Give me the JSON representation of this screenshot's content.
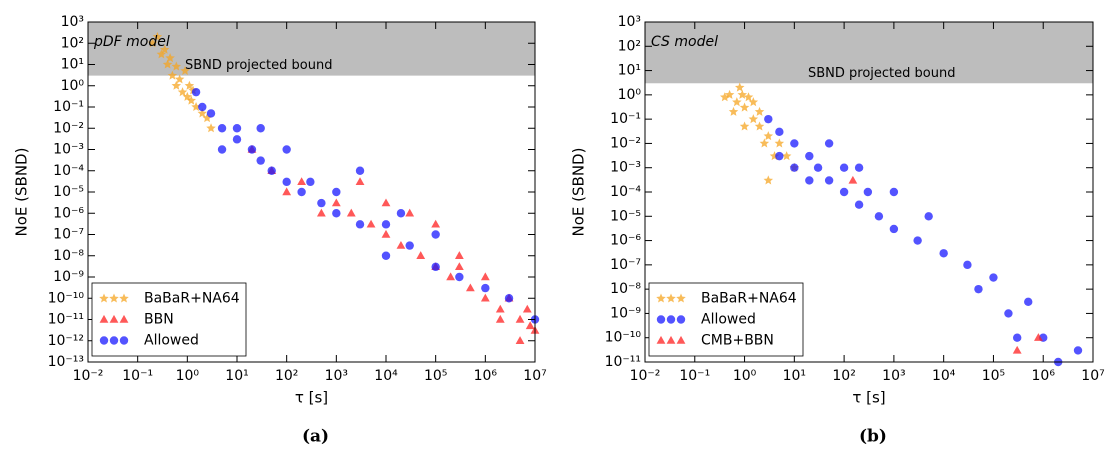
{
  "chart_data": [
    {
      "type": "scatter",
      "title": "pDF model",
      "caption": "(a)",
      "xlabel": "τ [s]",
      "ylabel": "NoE (SBND)",
      "xlog": true,
      "ylog": true,
      "legend": "lower left",
      "band": {
        "label": "SBND projected bound",
        "ylim": [
          3,
          1000
        ],
        "color": "#bdbdbd"
      },
      "xlim": [
        0.01,
        10000000
      ],
      "ylim": [
        1e-13,
        1000
      ],
      "xticks": [
        {
          "value": 0.01,
          "label": "10⁻²"
        },
        {
          "value": 0.1,
          "label": "10⁻¹"
        },
        {
          "value": 1,
          "label": "10⁰"
        },
        {
          "value": 10,
          "label": "10¹"
        },
        {
          "value": 100,
          "label": "10²"
        },
        {
          "value": 1000,
          "label": "10³"
        },
        {
          "value": 10000,
          "label": "10⁴"
        },
        {
          "value": 100000,
          "label": "10⁵"
        },
        {
          "value": 1000000,
          "label": "10⁶"
        },
        {
          "value": 10000000,
          "label": "10⁷"
        }
      ],
      "yticks": [
        {
          "value": 1e-13,
          "label": "10⁻¹³"
        },
        {
          "value": 1e-12,
          "label": "10⁻¹²"
        },
        {
          "value": 1e-11,
          "label": "10⁻¹¹"
        },
        {
          "value": 1e-10,
          "label": "10⁻¹⁰"
        },
        {
          "value": 1e-09,
          "label": "10⁻⁹"
        },
        {
          "value": 1e-08,
          "label": "10⁻⁸"
        },
        {
          "value": 1e-07,
          "label": "10⁻⁷"
        },
        {
          "value": 1e-06,
          "label": "10⁻⁶"
        },
        {
          "value": 1e-05,
          "label": "10⁻⁵"
        },
        {
          "value": 0.0001,
          "label": "10⁻⁴"
        },
        {
          "value": 0.001,
          "label": "10⁻³"
        },
        {
          "value": 0.01,
          "label": "10⁻²"
        },
        {
          "value": 0.1,
          "label": "10⁻¹"
        },
        {
          "value": 1,
          "label": "10⁰"
        },
        {
          "value": 10,
          "label": "10¹"
        },
        {
          "value": 100,
          "label": "10²"
        },
        {
          "value": 1000,
          "label": "10³"
        }
      ],
      "series": [
        {
          "name": "BaBaR+NA64",
          "color": "#f5a623",
          "marker": "star",
          "x": [
            0.2,
            0.3,
            0.4,
            0.5,
            0.6,
            0.8,
            1,
            0.7,
            1.2,
            1.5,
            0.9,
            1.1,
            2,
            0.35,
            0.45,
            1.3,
            0.6,
            2.5,
            3,
            0.25
          ],
          "values": [
            100,
            30,
            10,
            3,
            1,
            0.5,
            0.3,
            2,
            0.2,
            0.1,
            5,
            1,
            0.05,
            50,
            20,
            0.6,
            8,
            0.03,
            0.01,
            200
          ]
        },
        {
          "name": "BBN",
          "color": "#ff2020",
          "marker": "triangle",
          "x": [
            20,
            50,
            100,
            200,
            500,
            1000,
            2000,
            5000,
            10000,
            20000,
            50000,
            100000,
            200000,
            500000,
            1000000,
            2000000,
            5000000,
            10000000,
            30000,
            100000,
            300000,
            1000000,
            3000000,
            7000000,
            3000,
            10000,
            300000,
            2000000,
            5000000,
            8000000
          ],
          "values": [
            0.001,
            0.0001,
            1e-05,
            3e-05,
            1e-06,
            3e-06,
            1e-06,
            3e-07,
            1e-07,
            3e-08,
            1e-08,
            3e-09,
            1e-09,
            3e-10,
            1e-10,
            3e-11,
            1e-11,
            3e-12,
            1e-06,
            3e-07,
            1e-08,
            1e-09,
            1e-10,
            3e-11,
            3e-05,
            3e-06,
            3e-09,
            1e-11,
            1e-12,
            5e-12
          ]
        },
        {
          "name": "Allowed",
          "color": "#1a1aff",
          "marker": "circle",
          "x": [
            1.5,
            2,
            3,
            5,
            10,
            10,
            20,
            30,
            50,
            100,
            100,
            200,
            300,
            500,
            1000,
            1000,
            3000,
            10000,
            10000,
            30000,
            100000,
            100000,
            300000,
            1000000,
            3000000,
            10000000,
            5,
            30,
            3000,
            20000
          ],
          "values": [
            0.5,
            0.1,
            0.05,
            0.01,
            0.003,
            0.01,
            0.001,
            0.0003,
            0.0001,
            3e-05,
            0.001,
            1e-05,
            3e-05,
            3e-06,
            1e-06,
            1e-05,
            3e-07,
            3e-07,
            1e-08,
            3e-08,
            3e-09,
            1e-07,
            1e-09,
            3e-10,
            1e-10,
            1e-11,
            0.001,
            0.01,
            0.0001,
            1e-06
          ]
        }
      ]
    },
    {
      "type": "scatter",
      "title": "CS model",
      "caption": "(b)",
      "xlabel": "τ [s]",
      "ylabel": "NoE (SBND)",
      "xlog": true,
      "ylog": true,
      "legend": "lower left",
      "band": {
        "label": "SBND projected bound",
        "ylim": [
          3,
          1000
        ],
        "color": "#bdbdbd"
      },
      "xlim": [
        0.01,
        10000000
      ],
      "ylim": [
        1e-11,
        1000
      ],
      "xticks": [
        {
          "value": 0.01,
          "label": "10⁻²"
        },
        {
          "value": 0.1,
          "label": "10⁻¹"
        },
        {
          "value": 1,
          "label": "10⁰"
        },
        {
          "value": 10,
          "label": "10¹"
        },
        {
          "value": 100,
          "label": "10²"
        },
        {
          "value": 1000,
          "label": "10³"
        },
        {
          "value": 10000,
          "label": "10⁴"
        },
        {
          "value": 100000,
          "label": "10⁵"
        },
        {
          "value": 1000000,
          "label": "10⁶"
        },
        {
          "value": 10000000,
          "label": "10⁷"
        }
      ],
      "yticks": [
        {
          "value": 1e-11,
          "label": "10⁻¹¹"
        },
        {
          "value": 1e-10,
          "label": "10⁻¹⁰"
        },
        {
          "value": 1e-09,
          "label": "10⁻⁹"
        },
        {
          "value": 1e-08,
          "label": "10⁻⁸"
        },
        {
          "value": 1e-07,
          "label": "10⁻⁷"
        },
        {
          "value": 1e-06,
          "label": "10⁻⁶"
        },
        {
          "value": 1e-05,
          "label": "10⁻⁵"
        },
        {
          "value": 0.0001,
          "label": "10⁻⁴"
        },
        {
          "value": 0.001,
          "label": "10⁻³"
        },
        {
          "value": 0.01,
          "label": "10⁻²"
        },
        {
          "value": 0.1,
          "label": "10⁻¹"
        },
        {
          "value": 1,
          "label": "10⁰"
        },
        {
          "value": 10,
          "label": "10¹"
        },
        {
          "value": 100,
          "label": "10²"
        },
        {
          "value": 1000,
          "label": "10³"
        }
      ],
      "series": [
        {
          "name": "BaBaR+NA64",
          "color": "#f5a623",
          "marker": "star",
          "x": [
            0.5,
            0.7,
            1,
            0.8,
            1.5,
            2,
            3,
            1,
            0.6,
            5,
            2,
            0.9,
            1.2,
            4,
            3,
            10,
            7,
            1.5,
            2.5,
            0.4
          ],
          "values": [
            1,
            0.5,
            0.3,
            2,
            0.1,
            0.05,
            0.02,
            0.05,
            0.2,
            0.01,
            0.2,
            1,
            0.8,
            0.003,
            0.0003,
            0.001,
            0.003,
            0.5,
            0.01,
            0.8
          ]
        },
        {
          "name": "Allowed",
          "color": "#1a1aff",
          "marker": "circle",
          "x": [
            3,
            5,
            10,
            5,
            10,
            20,
            20,
            30,
            50,
            50,
            100,
            100,
            200,
            200,
            300,
            500,
            1000,
            1000,
            3000,
            5000,
            10000,
            30000,
            50000,
            100000,
            200000,
            300000,
            500000,
            1000000,
            2000000,
            5000000
          ],
          "values": [
            0.1,
            0.03,
            0.01,
            0.003,
            0.001,
            0.003,
            0.0003,
            0.001,
            0.0003,
            0.01,
            0.0001,
            0.001,
            3e-05,
            0.001,
            0.0001,
            1e-05,
            3e-06,
            0.0001,
            1e-06,
            1e-05,
            3e-07,
            1e-07,
            1e-08,
            3e-08,
            1e-09,
            1e-10,
            3e-09,
            1e-10,
            1e-11,
            3e-11
          ]
        },
        {
          "name": "CMB+BBN",
          "color": "#ff2020",
          "marker": "triangle",
          "x": [
            150,
            300000,
            800000
          ],
          "values": [
            0.0003,
            3e-11,
            1e-10
          ]
        }
      ]
    }
  ]
}
